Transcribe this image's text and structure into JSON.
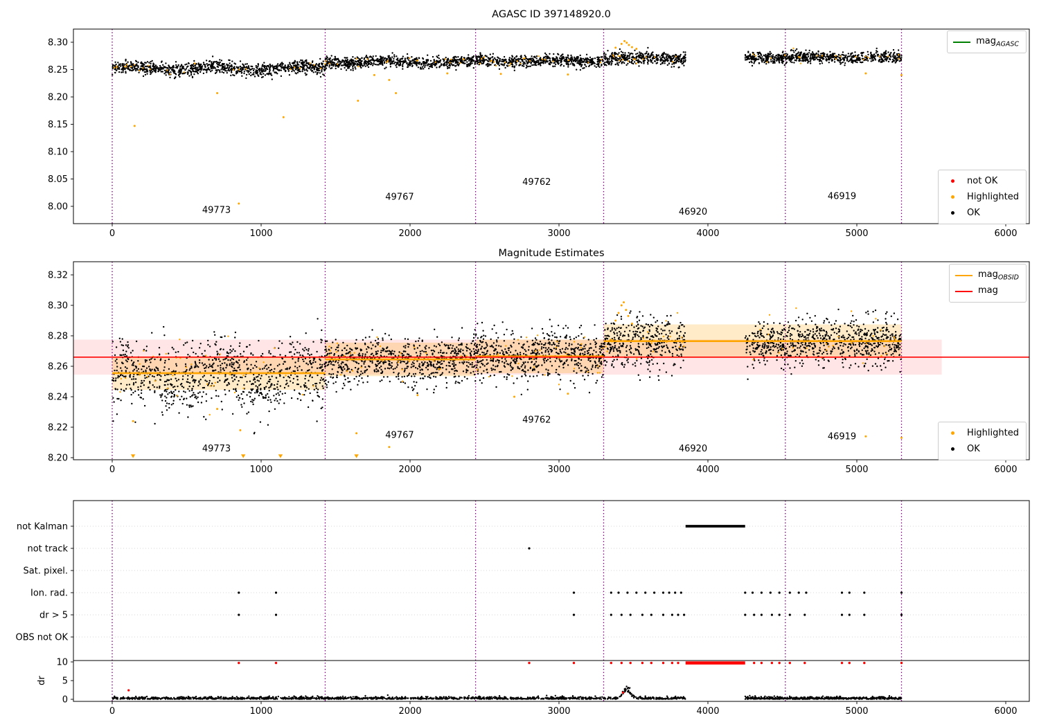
{
  "colors": {
    "ok": "#000000",
    "highlighted": "#ffa500",
    "not_ok": "#ff0000",
    "mag_agasc": "#008000",
    "mag_obsid": "#ffa500",
    "mag": "#ff0000",
    "obsid_boundary": "#800080",
    "mag_band": "rgba(255,0,0,0.10)",
    "obsid_band": "rgba(255,165,0,0.22)"
  },
  "legends": {
    "agasc": {
      "base": "mag",
      "sub": "AGASC"
    },
    "chart1_markers": [
      {
        "label": "not OK"
      },
      {
        "label": "Highlighted"
      },
      {
        "label": "OK"
      }
    ],
    "obsid": {
      "base": "mag",
      "sub": "OBSID"
    },
    "mag": {
      "base": "mag",
      "sub": ""
    },
    "chart2_markers": [
      {
        "label": "Highlighted"
      },
      {
        "label": "OK"
      }
    ]
  },
  "chart_data": [
    {
      "type": "scatter",
      "title": "AGASC ID 397148920.0",
      "xlabel": "",
      "ylabel": "",
      "xlim": [
        -260,
        6160
      ],
      "ylim": [
        7.968,
        8.324
      ],
      "xticks": [
        0,
        1000,
        2000,
        3000,
        4000,
        5000,
        6000
      ],
      "yticks": [
        8.0,
        8.05,
        8.1,
        8.15,
        8.2,
        8.25,
        8.3
      ],
      "grid": false,
      "legend_position": "upper right / lower right",
      "obsid_boundaries": [
        0,
        1430,
        2440,
        3300,
        4520,
        5300
      ],
      "obsid_labels": [
        {
          "text": "49773",
          "x": 700,
          "y": 7.988
        },
        {
          "text": "49767",
          "x": 1930,
          "y": 8.012
        },
        {
          "text": "49762",
          "x": 2850,
          "y": 8.039
        },
        {
          "text": "46920",
          "x": 3900,
          "y": 7.985
        },
        {
          "text": "46919",
          "x": 4900,
          "y": 8.013
        }
      ],
      "segments": [
        {
          "obsid": "49773",
          "x0": 0,
          "x1": 1430,
          "mean": 8.252,
          "std": 0.006,
          "wave": 0.0035,
          "n": 1000,
          "seed": 11
        },
        {
          "obsid": "49767",
          "x0": 1430,
          "x1": 2440,
          "mean": 8.264,
          "std": 0.005,
          "wave": 0.002,
          "n": 750,
          "seed": 12
        },
        {
          "obsid": "49762",
          "x0": 2440,
          "x1": 3300,
          "mean": 8.266,
          "std": 0.005,
          "wave": 0.0015,
          "n": 650,
          "seed": 13
        },
        {
          "obsid": "46920",
          "x0": 3300,
          "x1": 3850,
          "mean": 8.27,
          "std": 0.006,
          "wave": 0.002,
          "n": 420,
          "seed": 14
        },
        {
          "obsid": "46919",
          "x0": 4250,
          "x1": 5300,
          "mean": 8.272,
          "std": 0.005,
          "wave": 0.0015,
          "n": 800,
          "seed": 15
        }
      ],
      "highlighted_fraction": 0.03,
      "highlighted_outliers": [
        [
          150,
          8.147
        ],
        [
          705,
          8.207
        ],
        [
          850,
          8.005
        ],
        [
          1150,
          8.163
        ],
        [
          1650,
          8.193
        ],
        [
          1760,
          8.24
        ],
        [
          1860,
          8.231
        ],
        [
          1905,
          8.207
        ],
        [
          2250,
          8.243
        ],
        [
          2610,
          8.242
        ],
        [
          3060,
          8.241
        ],
        [
          3380,
          8.29
        ],
        [
          3420,
          8.297
        ],
        [
          3440,
          8.302
        ],
        [
          3455,
          8.299
        ],
        [
          3470,
          8.295
        ],
        [
          3490,
          8.291
        ],
        [
          3520,
          8.288
        ],
        [
          5060,
          8.243
        ],
        [
          5300,
          8.24
        ]
      ]
    },
    {
      "type": "scatter",
      "title": "Magnitude Estimates",
      "xlabel": "",
      "ylabel": "",
      "xlim": [
        -260,
        6160
      ],
      "ylim": [
        8.1986,
        8.3286
      ],
      "xticks": [
        0,
        1000,
        2000,
        3000,
        4000,
        5000,
        6000
      ],
      "yticks": [
        8.2,
        8.22,
        8.24,
        8.26,
        8.28,
        8.3,
        8.32
      ],
      "grid": false,
      "mag": 8.266,
      "mag_err_band": [
        8.2545,
        8.2775
      ],
      "band_x_end": 5570,
      "obsid_boundaries": [
        0,
        1430,
        2440,
        3300,
        4520,
        5300
      ],
      "obsid_labels": [
        {
          "text": "49773",
          "x": 700,
          "y": 8.204
        },
        {
          "text": "49767",
          "x": 1930,
          "y": 8.213
        },
        {
          "text": "49762",
          "x": 2850,
          "y": 8.223
        },
        {
          "text": "46920",
          "x": 3900,
          "y": 8.204
        },
        {
          "text": "46919",
          "x": 4900,
          "y": 8.212
        }
      ],
      "obsid_mags": [
        {
          "obsid": "49773",
          "x0": 0,
          "x1": 1430,
          "mag": 8.2555
        },
        {
          "obsid": "49767",
          "x0": 1430,
          "x1": 2440,
          "mag": 8.2645
        },
        {
          "obsid": "49762",
          "x0": 2440,
          "x1": 3300,
          "mag": 8.2665
        },
        {
          "obsid": "46920",
          "x0": 3300,
          "x1": 4520,
          "mag": 8.2765
        },
        {
          "obsid": "46919",
          "x0": 4520,
          "x1": 5300,
          "mag": 8.2765
        }
      ],
      "obsid_band_halfwidth": 0.011,
      "segments": [
        {
          "x0": 0,
          "x1": 1430,
          "mean": 8.2545,
          "std": 0.011,
          "wave": 0.004,
          "n": 1000,
          "seed": 21
        },
        {
          "x0": 1430,
          "x1": 2440,
          "mean": 8.264,
          "std": 0.0075,
          "wave": 0.002,
          "n": 750,
          "seed": 22
        },
        {
          "x0": 2440,
          "x1": 3300,
          "mean": 8.267,
          "std": 0.0075,
          "wave": 0.002,
          "n": 650,
          "seed": 23
        },
        {
          "x0": 3300,
          "x1": 3850,
          "mean": 8.2765,
          "std": 0.008,
          "wave": 0,
          "n": 420,
          "seed": 24
        },
        {
          "x0": 4250,
          "x1": 5300,
          "mean": 8.2755,
          "std": 0.0075,
          "wave": 0,
          "n": 800,
          "seed": 25
        }
      ],
      "highlighted_fraction": 0.035,
      "highlighted_outliers": [
        [
          140,
          8.224
        ],
        [
          705,
          8.232
        ],
        [
          860,
          8.218
        ],
        [
          1640,
          8.216
        ],
        [
          1860,
          8.207
        ],
        [
          2050,
          8.241
        ],
        [
          2700,
          8.24
        ],
        [
          3060,
          8.242
        ],
        [
          3380,
          8.29
        ],
        [
          3400,
          8.295
        ],
        [
          3420,
          8.3
        ],
        [
          3435,
          8.302
        ],
        [
          3450,
          8.297
        ],
        [
          3465,
          8.293
        ],
        [
          3490,
          8.288
        ],
        [
          5060,
          8.214
        ],
        [
          5300,
          8.213
        ]
      ],
      "highlighted_clipped_low": [
        140,
        880,
        1130,
        1640
      ]
    },
    {
      "type": "flags",
      "rows": [
        "not Kalman",
        "not track",
        "Sat. pixel.",
        "Ion. rad.",
        "dr > 5",
        "OBS not OK"
      ],
      "dr_axis_label": "dr",
      "dr_ticks": [
        0,
        5,
        10
      ],
      "xticks": [
        0,
        1000,
        2000,
        3000,
        4000,
        5000,
        6000
      ],
      "obsid_boundaries": [
        0,
        1430,
        2440,
        3300,
        4520,
        5300
      ],
      "flags": {
        "not_kalman_runs": [
          [
            3850,
            4250
          ]
        ],
        "not_track": [
          2800
        ],
        "sat_pixel": [],
        "ion_rad": [
          850,
          1100,
          3100,
          3350,
          3400,
          3460,
          3520,
          3580,
          3640,
          3700,
          3740,
          3780,
          3820,
          4250,
          4300,
          4360,
          4420,
          4480,
          4550,
          4610,
          4660,
          4900,
          4950,
          5050,
          5300
        ],
        "dr_gt_5": [
          850,
          1100,
          3100,
          3350,
          3420,
          3480,
          3560,
          3620,
          3700,
          3760,
          3800,
          3840,
          4250,
          4310,
          4360,
          4430,
          4480,
          4550,
          4650,
          4900,
          4950,
          5050,
          5300
        ],
        "obs_not_ok": []
      },
      "dr_clip_value": 10,
      "dr_clipped_red": [
        850,
        1100,
        2800,
        3100,
        3350,
        3420,
        3480,
        3560,
        3620,
        3700,
        3760,
        3800,
        4310,
        4360,
        4430,
        4480,
        4550,
        4650,
        4900,
        4950,
        5050,
        5300
      ],
      "dr_clipped_red_runs": [
        [
          3850,
          4250
        ]
      ],
      "dr_red_points": [
        [
          110,
          2.4
        ],
        [
          3430,
          1.8
        ]
      ],
      "dr_trace_segments": [
        {
          "x0": 0,
          "x1": 3850,
          "n": 1500,
          "seed": 31
        },
        {
          "x0": 4250,
          "x1": 5300,
          "n": 550,
          "seed": 32
        }
      ],
      "dr_bump": {
        "center": 3455,
        "sigma": 35,
        "peak": 3.1
      }
    }
  ]
}
